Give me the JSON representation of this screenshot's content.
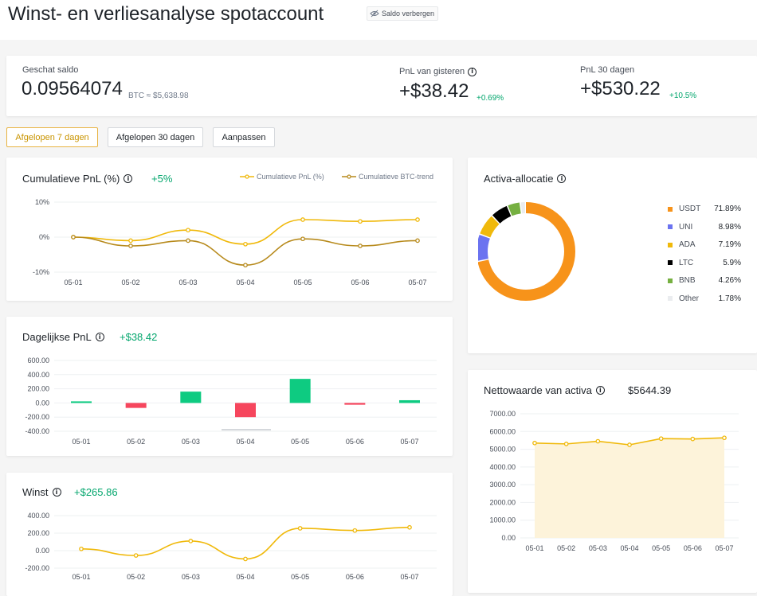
{
  "header": {
    "title": "Winst- en verliesanalyse spotaccount",
    "hide_balance_label": "Saldo verbergen"
  },
  "summary": {
    "estimated_balance_label": "Geschat saldo",
    "estimated_balance_value": "0.09564074",
    "estimated_balance_unit": "BTC ≈ $5,638.98",
    "pnl_yesterday_label": "PnL van gisteren",
    "pnl_yesterday_value": "+$38.42",
    "pnl_yesterday_pct": "+0.69%",
    "pnl_30d_label": "PnL 30 dagen",
    "pnl_30d_value": "+$530.22",
    "pnl_30d_pct": "+10.5%"
  },
  "periods": [
    {
      "label": "Afgelopen 7 dagen",
      "active": true
    },
    {
      "label": "Afgelopen 30 dagen",
      "active": false
    },
    {
      "label": "Aanpassen",
      "active": false
    }
  ],
  "colors": {
    "accent_yellow": "#f0b90b",
    "accent_brown": "#b78a1c",
    "positive": "#0ecb81",
    "negative": "#f6465d",
    "positive_text": "#03a66d"
  },
  "icons": {
    "hide": "eye-slash-icon",
    "info": "info-icon"
  },
  "cumulative": {
    "title": "Cumulatieve PnL (%)",
    "value": "+5%",
    "legend": [
      "Cumulatieve PnL (%)",
      "Cumulatieve BTC-trend"
    ]
  },
  "daily": {
    "title": "Dagelijkse PnL",
    "value": "+$38.42"
  },
  "profit": {
    "title": "Winst",
    "value": "+$265.86"
  },
  "allocation": {
    "title": "Activa-allocatie",
    "items": [
      {
        "name": "USDT",
        "pct": "71.89%",
        "value": 71.89,
        "color": "#f7931a"
      },
      {
        "name": "UNI",
        "pct": "8.98%",
        "value": 8.98,
        "color": "#6b73f0"
      },
      {
        "name": "ADA",
        "pct": "7.19%",
        "value": 7.19,
        "color": "#f0b90b"
      },
      {
        "name": "LTC",
        "pct": "5.9%",
        "value": 5.9,
        "color": "#000000"
      },
      {
        "name": "BNB",
        "pct": "4.26%",
        "value": 4.26,
        "color": "#76b041"
      },
      {
        "name": "Other",
        "pct": "1.78%",
        "value": 1.78,
        "color": "#eaecef"
      }
    ]
  },
  "networth": {
    "title": "Nettowaarde van activa",
    "value": "$5644.39"
  },
  "chart_data": [
    {
      "type": "line",
      "title": "Cumulatieve PnL (%)",
      "x": [
        "05-01",
        "05-02",
        "05-03",
        "05-04",
        "05-05",
        "05-06",
        "05-07"
      ],
      "yticks": [
        "10%",
        "0%",
        "-10%"
      ],
      "ylim": [
        -10,
        10
      ],
      "series": [
        {
          "name": "Cumulatieve PnL (%)",
          "values": [
            0,
            -1,
            2,
            -2,
            5,
            4.5,
            5
          ],
          "color": "#f0b90b"
        },
        {
          "name": "Cumulatieve BTC-trend",
          "values": [
            0,
            -2.5,
            -1,
            -8,
            -0.5,
            -2.5,
            -1
          ],
          "color": "#b78a1c"
        }
      ]
    },
    {
      "type": "bar",
      "title": "Dagelijkse PnL",
      "categories": [
        "05-01",
        "05-02",
        "05-03",
        "05-04",
        "05-05",
        "05-06",
        "05-07"
      ],
      "values": [
        15,
        -70,
        160,
        -200,
        340,
        -25,
        38.42
      ],
      "yticks": [
        "600.00",
        "400.00",
        "200.00",
        "0.00",
        "-200.00",
        "-400.00"
      ],
      "ylim": [
        -400,
        600
      ]
    },
    {
      "type": "line",
      "title": "Winst",
      "x": [
        "05-01",
        "05-02",
        "05-03",
        "05-04",
        "05-05",
        "05-06",
        "05-07"
      ],
      "yticks": [
        "400.00",
        "200.00",
        "0.00",
        "-200.00"
      ],
      "ylim": [
        -200,
        400
      ],
      "series": [
        {
          "values": [
            20,
            -55,
            110,
            -95,
            255,
            230,
            265.86
          ],
          "color": "#f0b90b"
        }
      ]
    },
    {
      "type": "pie",
      "title": "Activa-allocatie",
      "labels": [
        "USDT",
        "UNI",
        "ADA",
        "LTC",
        "BNB",
        "Other"
      ],
      "values": [
        71.89,
        8.98,
        7.19,
        5.9,
        4.26,
        1.78
      ]
    },
    {
      "type": "area",
      "title": "Nettowaarde van activa",
      "x": [
        "05-01",
        "05-02",
        "05-03",
        "05-04",
        "05-05",
        "05-06",
        "05-07"
      ],
      "yticks": [
        "7000.00",
        "6000.00",
        "5000.00",
        "4000.00",
        "3000.00",
        "2000.00",
        "1000.00",
        "0.00"
      ],
      "ylim": [
        0,
        7000
      ],
      "series": [
        {
          "values": [
            5350,
            5300,
            5450,
            5250,
            5600,
            5580,
            5644.39
          ],
          "color": "#f0b90b"
        }
      ]
    }
  ]
}
